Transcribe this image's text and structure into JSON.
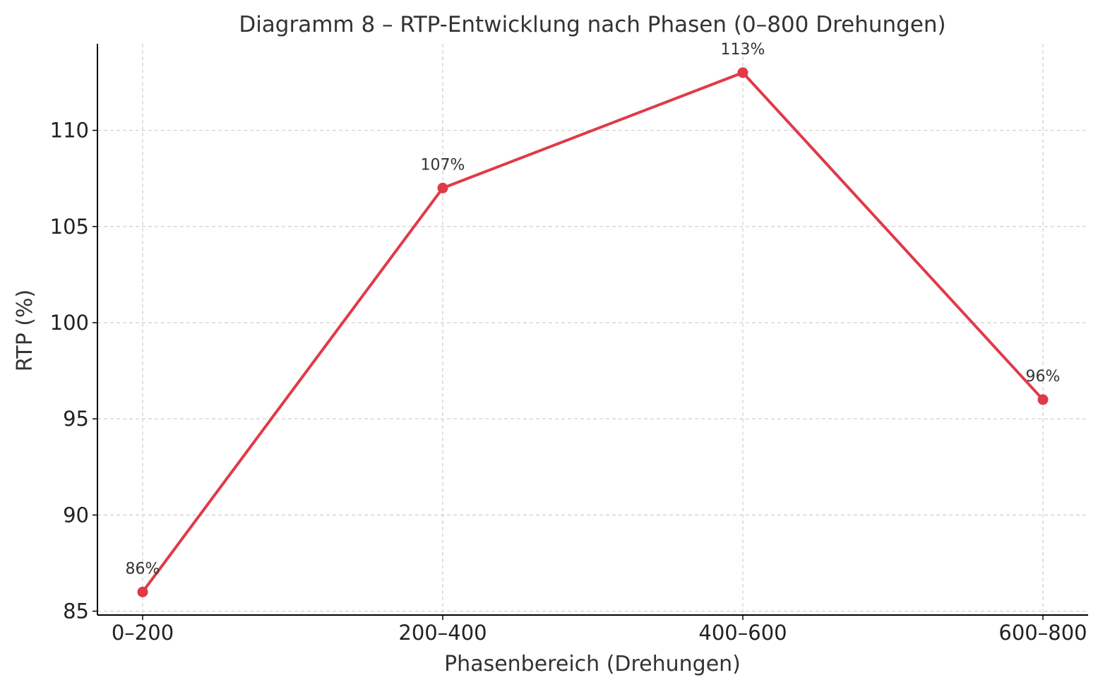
{
  "chart_data": {
    "type": "line",
    "title": "Diagramm 8 – RTP-Entwicklung nach Phasen (0–800 Drehungen)",
    "xlabel": "Phasenbereich (Drehungen)",
    "ylabel": "RTP (%)",
    "categories": [
      "0–200",
      "200–400",
      "400–600",
      "600–800"
    ],
    "series": [
      {
        "name": "",
        "values": [
          86,
          107,
          113,
          96
        ],
        "data_labels": [
          "86%",
          "107%",
          "113%",
          "96%"
        ],
        "color": "#e03a48"
      }
    ],
    "ylim": [
      84.8,
      114.5
    ],
    "yticks": [
      85,
      90,
      95,
      100,
      105,
      110
    ],
    "grid": true,
    "legend": "none"
  }
}
